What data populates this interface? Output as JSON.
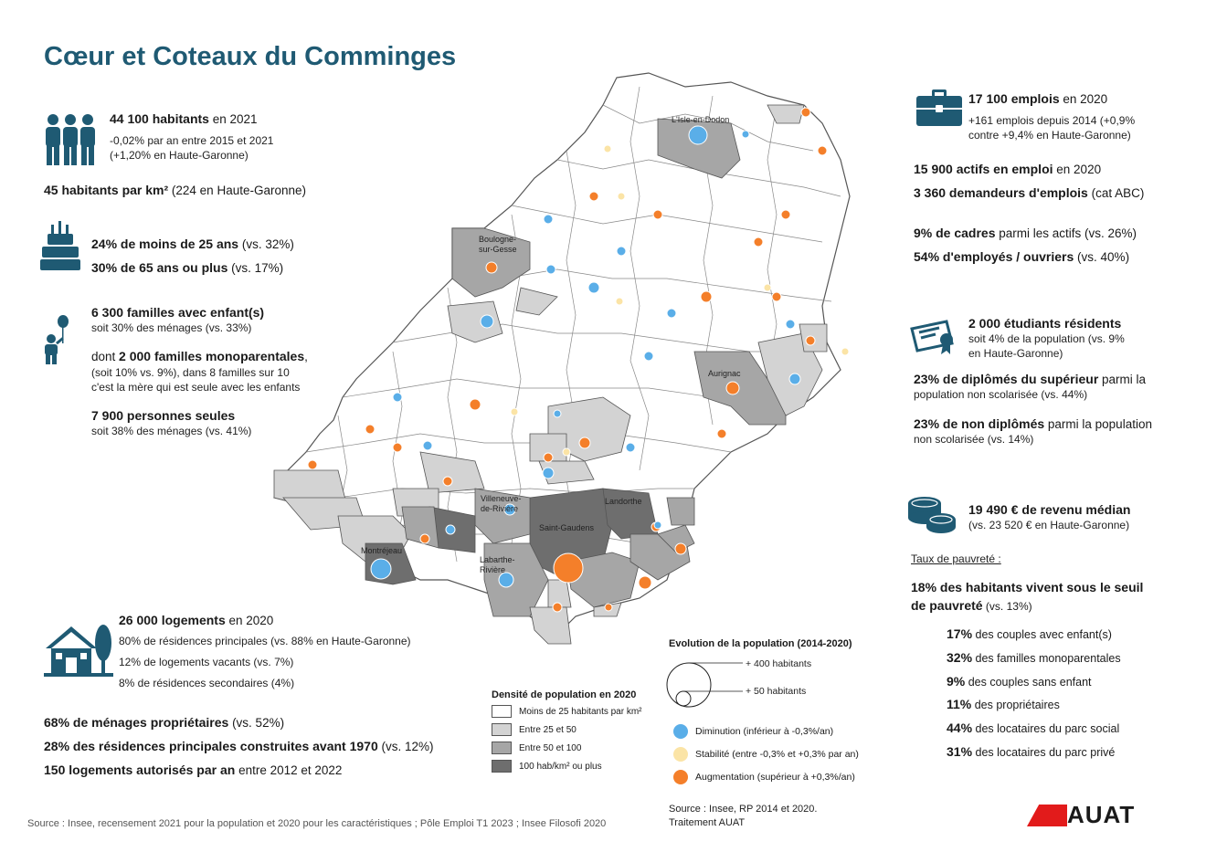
{
  "title": "Cœur et Coteaux du Comminges",
  "colors": {
    "title": "#1f5a73",
    "icon": "#1f5a73",
    "decrease": "#5aaee8",
    "stable": "#fbe4a6",
    "increase": "#f47f2a",
    "brand": "#e21b1b"
  },
  "left": {
    "pop": {
      "value": "44 100 habitants",
      "suffix": " en 2021",
      "line1": "-0,02% par an entre 2015 et 2021",
      "line2": "(+1,20% en Haute-Garonne)"
    },
    "density": {
      "value": "45 habitants par km²",
      "suffix": " (224 en Haute-Garonne)"
    },
    "young": {
      "value": "24% de moins de 25 ans",
      "suffix": " (vs. 32%)"
    },
    "old": {
      "value": "30% de 65 ans ou plus",
      "suffix": " (vs. 17%)"
    },
    "families": {
      "value": "6 300 familles avec enfant(s)",
      "line1": "soit 30% des ménages (vs. 33%)"
    },
    "mono": {
      "prefix": "dont ",
      "value": "2 000 familles monoparentales",
      "suffix": ",",
      "line1": "(soit 10% vs. 9%), dans 8 familles sur 10",
      "line2": "c'est la mère qui est seule avec les enfants"
    },
    "alone": {
      "value": "7 900 personnes seules",
      "line1": "soit 38% des ménages (vs. 41%)"
    },
    "housing": {
      "value": "26 000 logements",
      "suffix": " en 2020",
      "line1": "80% de résidences principales (vs. 88% en Haute-Garonne)",
      "line2": "12% de logements vacants (vs. 7%)",
      "line3": "8% de résidences secondaires (4%)"
    },
    "owners": {
      "value": "68% de ménages propriétaires",
      "suffix": " (vs. 52%)"
    },
    "before1970": {
      "value": "28% des résidences principales construites avant 1970",
      "suffix": " (vs. 12%)"
    },
    "authorized": {
      "value": "150 logements autorisés par an",
      "suffix": " entre 2012 et 2022"
    }
  },
  "right": {
    "jobs": {
      "value": "17 100 emplois",
      "suffix": " en 2020",
      "line1": "+161 emplois depuis 2014 (+0,9%",
      "line2": "contre +9,4% en Haute-Garonne)"
    },
    "actifs": {
      "value": "15 900 actifs en emploi",
      "suffix": " en 2020"
    },
    "jobseekers": {
      "value": "3 360 demandeurs d'emplois",
      "suffix": " (cat ABC)"
    },
    "cadres": {
      "value": "9% de cadres",
      "suffix": " parmi les actifs (vs. 26%)"
    },
    "workers": {
      "value": "54% d'employés / ouvriers",
      "suffix": " (vs. 40%)"
    },
    "students": {
      "value": "2 000 étudiants résidents",
      "line1": "soit 4% de la population (vs. 9%",
      "line2": "en Haute-Garonne)"
    },
    "higher": {
      "value": "23% de diplômés du supérieur",
      "suffix": " parmi la",
      "line1": "population non scolarisée (vs. 44%)"
    },
    "nodiploma": {
      "value": "23% de non diplômés",
      "suffix": " parmi la population",
      "line1": "non scolarisée (vs. 14%)"
    },
    "income": {
      "value": "19 490 € de revenu médian",
      "line1": "(vs. 23 520 € en Haute-Garonne)"
    },
    "poverty_title": "Taux de pauvreté :",
    "poverty": {
      "value": "18% des habitants vivent sous le seuil",
      "value2": "de pauvreté",
      "suffix": " (vs. 13%)"
    },
    "poverty_rows": [
      {
        "pct": "17%",
        "label": " des couples avec enfant(s)"
      },
      {
        "pct": "32%",
        "label": " des familles monoparentales"
      },
      {
        "pct": "9%",
        "label": " des couples sans enfant"
      },
      {
        "pct": "11%",
        "label": " des propriétaires"
      },
      {
        "pct": "44%",
        "label": " des locataires du parc social"
      },
      {
        "pct": "31%",
        "label": " des locataires du parc privé"
      }
    ]
  },
  "map": {
    "labels": [
      "L'Isle-en-Dodon",
      "Boulogne-",
      "sur-Gesse",
      "Aurignac",
      "Villeneuve-",
      "de-Rivière",
      "Saint-Gaudens",
      "Landorthe",
      "Montréjeau",
      "Labarthe-",
      "Rivière"
    ]
  },
  "legend": {
    "density_title": "Densité de population en 2020",
    "density_items": [
      "Moins de 25 habitants par km²",
      "Entre 25 et 50",
      "Entre 50 et 100",
      "100 hab/km² ou plus"
    ],
    "density_colors": [
      "#ffffff",
      "#d3d3d3",
      "#a6a6a6",
      "#6e6e6e"
    ],
    "evo_title": "Evolution de la population (2014-2020)",
    "size_big": "+ 400 habitants",
    "size_small": "+ 50 habitants",
    "evo_items": [
      "Diminution (inférieur à -0,3%/an)",
      "Stabilité (entre -0,3% et +0,3% par an)",
      "Augmentation (supérieur à +0,3%/an)"
    ]
  },
  "sources": {
    "left": "Source : Insee, recensement 2021 pour la population et 2020 pour les caractéristiques ; Pôle Emploi T1 2023 ; Insee Filosofi 2020",
    "right1": "Source : Insee, RP 2014 et 2020.",
    "right2": "Traitement AUAT",
    "brand": "AUAT"
  }
}
